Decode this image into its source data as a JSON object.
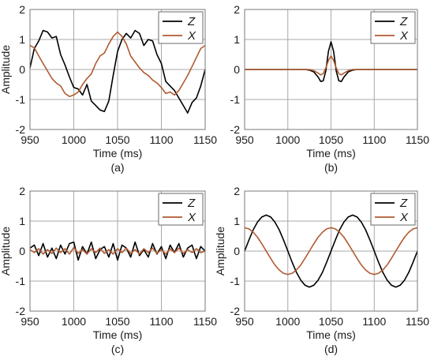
{
  "chart_data": [
    {
      "type": "line",
      "caption": "(a)",
      "xlabel": "Time (ms)",
      "ylabel": "Amplitude",
      "xlim": [
        950,
        1150
      ],
      "ylim": [
        -2,
        2
      ],
      "xticks": [
        950,
        1000,
        1050,
        1100,
        1150
      ],
      "yticks": [
        -2,
        -1,
        0,
        1,
        2
      ],
      "grid": true,
      "legend": "top-right",
      "series": [
        {
          "name": "Z",
          "color": "#000000",
          "x": [
            950,
            955,
            960,
            965,
            970,
            975,
            980,
            985,
            990,
            995,
            1000,
            1005,
            1010,
            1015,
            1020,
            1025,
            1030,
            1035,
            1040,
            1045,
            1050,
            1055,
            1060,
            1065,
            1070,
            1075,
            1080,
            1085,
            1090,
            1095,
            1100,
            1105,
            1110,
            1115,
            1120,
            1125,
            1130,
            1135,
            1140,
            1145,
            1150
          ],
          "y": [
            0.05,
            0.7,
            0.95,
            1.3,
            1.25,
            1.05,
            1.1,
            0.5,
            0.15,
            -0.25,
            -0.6,
            -0.65,
            -0.85,
            -0.5,
            -1.05,
            -1.2,
            -1.35,
            -1.4,
            -1.05,
            -0.2,
            0.6,
            1.0,
            1.2,
            1.05,
            1.3,
            1.2,
            0.8,
            1.0,
            0.95,
            0.5,
            0.2,
            -0.4,
            -0.55,
            -0.7,
            -0.95,
            -1.2,
            -1.45,
            -1.1,
            -0.95,
            -0.55,
            0.0
          ]
        },
        {
          "name": "X",
          "color": "#b05a2f",
          "x": [
            950,
            955,
            960,
            965,
            970,
            975,
            980,
            985,
            990,
            995,
            1000,
            1005,
            1010,
            1015,
            1020,
            1025,
            1030,
            1035,
            1040,
            1045,
            1050,
            1055,
            1060,
            1065,
            1070,
            1075,
            1080,
            1085,
            1090,
            1095,
            1100,
            1105,
            1110,
            1115,
            1120,
            1125,
            1130,
            1135,
            1140,
            1145,
            1150
          ],
          "y": [
            0.8,
            0.72,
            0.45,
            0.2,
            -0.05,
            -0.3,
            -0.45,
            -0.55,
            -0.8,
            -0.9,
            -0.85,
            -0.75,
            -0.5,
            -0.3,
            -0.15,
            0.2,
            0.45,
            0.55,
            0.85,
            1.1,
            1.25,
            1.1,
            0.85,
            0.45,
            0.25,
            0.05,
            -0.1,
            -0.2,
            -0.35,
            -0.45,
            -0.6,
            -0.8,
            -0.75,
            -0.85,
            -0.7,
            -0.45,
            -0.2,
            0.1,
            0.4,
            0.7,
            0.8
          ]
        }
      ]
    },
    {
      "type": "line",
      "caption": "(b)",
      "xlabel": "Time (ms)",
      "ylabel": "",
      "xlim": [
        950,
        1150
      ],
      "ylim": [
        -2,
        2
      ],
      "xticks": [
        950,
        1000,
        1050,
        1100,
        1150
      ],
      "yticks": [
        -2,
        -1,
        0,
        1,
        2
      ],
      "grid": true,
      "legend": "top-right",
      "series": [
        {
          "name": "Z",
          "color": "#000000",
          "x": [
            950,
            1020,
            1025,
            1030,
            1035,
            1038,
            1041,
            1044,
            1047,
            1050,
            1053,
            1056,
            1059,
            1062,
            1065,
            1070,
            1075,
            1080,
            1150
          ],
          "y": [
            0,
            0,
            -0.02,
            -0.08,
            -0.25,
            -0.4,
            -0.38,
            -0.05,
            0.6,
            0.92,
            0.6,
            -0.05,
            -0.38,
            -0.4,
            -0.25,
            -0.08,
            -0.02,
            0,
            0
          ]
        },
        {
          "name": "X",
          "color": "#b05a2f",
          "x": [
            950,
            1025,
            1030,
            1035,
            1038,
            1041,
            1044,
            1047,
            1050,
            1053,
            1056,
            1059,
            1062,
            1065,
            1070,
            1075,
            1150
          ],
          "y": [
            0,
            0,
            -0.04,
            -0.12,
            -0.18,
            -0.14,
            0.05,
            0.3,
            0.45,
            0.3,
            0.05,
            -0.14,
            -0.18,
            -0.12,
            -0.04,
            0,
            0
          ]
        }
      ]
    },
    {
      "type": "line",
      "caption": "(c)",
      "xlabel": "Time (ms)",
      "ylabel": "Amplitude",
      "xlim": [
        950,
        1150
      ],
      "ylim": [
        -2,
        2
      ],
      "xticks": [
        950,
        1000,
        1050,
        1100,
        1150
      ],
      "yticks": [
        -2,
        -1,
        0,
        1,
        2
      ],
      "grid": true,
      "legend": "top-right",
      "series": [
        {
          "name": "Z",
          "color": "#000000",
          "x": [
            950,
            955,
            960,
            965,
            970,
            975,
            980,
            985,
            990,
            995,
            1000,
            1005,
            1010,
            1015,
            1020,
            1025,
            1030,
            1035,
            1040,
            1045,
            1050,
            1055,
            1060,
            1065,
            1070,
            1075,
            1080,
            1085,
            1090,
            1095,
            1100,
            1105,
            1110,
            1115,
            1120,
            1125,
            1130,
            1135,
            1140,
            1145,
            1150
          ],
          "y": [
            0.1,
            0.2,
            -0.15,
            0.25,
            -0.2,
            0.1,
            -0.25,
            0.2,
            -0.1,
            0.25,
            0.3,
            -0.3,
            0.15,
            -0.1,
            0.3,
            -0.25,
            0.05,
            0.15,
            -0.2,
            0.25,
            -0.3,
            0.2,
            0.1,
            -0.2,
            0.3,
            -0.15,
            0.05,
            -0.2,
            0.25,
            -0.1,
            0.15,
            -0.25,
            0.2,
            -0.05,
            0.25,
            -0.2,
            0.1,
            0.2,
            -0.25,
            0.15,
            0.0
          ]
        },
        {
          "name": "X",
          "color": "#b05a2f",
          "x": [
            950,
            955,
            960,
            965,
            970,
            975,
            980,
            985,
            990,
            995,
            1000,
            1005,
            1010,
            1015,
            1020,
            1025,
            1030,
            1035,
            1040,
            1045,
            1050,
            1055,
            1060,
            1065,
            1070,
            1075,
            1080,
            1085,
            1090,
            1095,
            1100,
            1105,
            1110,
            1115,
            1120,
            1125,
            1130,
            1135,
            1140,
            1145,
            1150
          ],
          "y": [
            0.05,
            -0.05,
            0.08,
            -0.1,
            0.05,
            -0.08,
            0.1,
            -0.05,
            0.08,
            -0.1,
            0.12,
            -0.08,
            0.05,
            -0.1,
            0.08,
            -0.05,
            0.1,
            -0.08,
            0.05,
            -0.1,
            0.08,
            -0.05,
            0.1,
            -0.08,
            0.05,
            -0.1,
            0.08,
            -0.05,
            0.1,
            -0.08,
            0.05,
            -0.1,
            0.08,
            -0.05,
            0.1,
            -0.08,
            0.05,
            -0.05,
            0.08,
            -0.05,
            0.0
          ]
        }
      ]
    },
    {
      "type": "line",
      "caption": "(d)",
      "xlabel": "Time (ms)",
      "ylabel": "Amplitude",
      "xlim": [
        950,
        1150
      ],
      "ylim": [
        -2,
        2
      ],
      "xticks": [
        950,
        1000,
        1050,
        1100,
        1150
      ],
      "yticks": [
        -2,
        -1,
        0,
        1,
        2
      ],
      "grid": true,
      "legend": "top-right",
      "series": [
        {
          "name": "Z",
          "color": "#000000",
          "x": [
            950,
            955,
            960,
            965,
            970,
            975,
            980,
            985,
            990,
            995,
            1000,
            1005,
            1010,
            1015,
            1020,
            1025,
            1030,
            1035,
            1040,
            1045,
            1050,
            1055,
            1060,
            1065,
            1070,
            1075,
            1080,
            1085,
            1090,
            1095,
            1100,
            1105,
            1110,
            1115,
            1120,
            1125,
            1130,
            1135,
            1140,
            1145,
            1150
          ],
          "y": [
            0,
            0.37,
            0.71,
            0.97,
            1.14,
            1.2,
            1.14,
            0.97,
            0.71,
            0.37,
            0,
            -0.37,
            -0.71,
            -0.97,
            -1.14,
            -1.2,
            -1.14,
            -0.97,
            -0.71,
            -0.37,
            0,
            0.37,
            0.71,
            0.97,
            1.14,
            1.2,
            1.14,
            0.97,
            0.71,
            0.37,
            0,
            -0.37,
            -0.71,
            -0.97,
            -1.14,
            -1.2,
            -1.14,
            -0.97,
            -0.71,
            -0.37,
            0
          ]
        },
        {
          "name": "X",
          "color": "#b05a2f",
          "x": [
            950,
            955,
            960,
            965,
            970,
            975,
            980,
            985,
            990,
            995,
            1000,
            1005,
            1010,
            1015,
            1020,
            1025,
            1030,
            1035,
            1040,
            1045,
            1050,
            1055,
            1060,
            1065,
            1070,
            1075,
            1080,
            1085,
            1090,
            1095,
            1100,
            1105,
            1110,
            1115,
            1120,
            1125,
            1130,
            1135,
            1140,
            1145,
            1150
          ],
          "y": [
            0.78,
            0.74,
            0.63,
            0.46,
            0.24,
            0,
            -0.24,
            -0.46,
            -0.63,
            -0.74,
            -0.78,
            -0.74,
            -0.63,
            -0.46,
            -0.24,
            0,
            0.24,
            0.46,
            0.63,
            0.74,
            0.78,
            0.74,
            0.63,
            0.46,
            0.24,
            0,
            -0.24,
            -0.46,
            -0.63,
            -0.74,
            -0.78,
            -0.74,
            -0.63,
            -0.46,
            -0.24,
            0,
            0.24,
            0.46,
            0.63,
            0.74,
            0.78
          ]
        }
      ]
    }
  ]
}
